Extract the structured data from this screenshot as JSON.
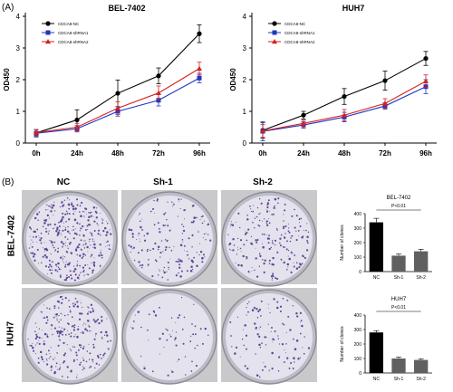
{
  "panels": {
    "a_label": "(A)",
    "b_label": "(B)"
  },
  "growth_x_label": "",
  "chart_data": [
    {
      "type": "line",
      "title": "BEL-7402",
      "ylabel": "OD450",
      "xlabel": "",
      "categories": [
        "0h",
        "24h",
        "48h",
        "72h",
        "96h"
      ],
      "ylim": [
        0,
        4
      ],
      "yticks": [
        "0",
        "1",
        "2",
        "3",
        "4"
      ],
      "series": [
        {
          "name": "CDCA8-NC",
          "color": "#000000",
          "marker": "circle",
          "values": [
            0.32,
            0.73,
            1.57,
            2.12,
            3.45
          ],
          "errors": [
            0.1,
            0.32,
            0.42,
            0.25,
            0.28
          ]
        },
        {
          "name": "CDCA8-shRNA1",
          "color": "#1f35c4",
          "marker": "square",
          "values": [
            0.31,
            0.45,
            1.0,
            1.35,
            2.05
          ],
          "errors": [
            0.12,
            0.1,
            0.15,
            0.18,
            0.15
          ]
        },
        {
          "name": "CDCA8-shRNA2",
          "color": "#d42020",
          "marker": "triangle",
          "values": [
            0.33,
            0.5,
            1.1,
            1.58,
            2.35
          ],
          "errors": [
            0.1,
            0.12,
            0.2,
            0.22,
            0.2
          ]
        }
      ],
      "legend_placement": "top-left"
    },
    {
      "type": "line",
      "title": "HUH7",
      "ylabel": "OD450",
      "xlabel": "",
      "categories": [
        "0h",
        "24h",
        "48h",
        "72h",
        "96h"
      ],
      "ylim": [
        0,
        4
      ],
      "yticks": [
        "0",
        "1",
        "2",
        "3",
        "4"
      ],
      "series": [
        {
          "name": "CDCA8-NC",
          "color": "#000000",
          "marker": "circle",
          "values": [
            0.4,
            0.88,
            1.47,
            1.97,
            2.67
          ],
          "errors": [
            0.25,
            0.12,
            0.25,
            0.3,
            0.22
          ]
        },
        {
          "name": "CDCA8-shRNA1",
          "color": "#1f35c4",
          "marker": "square",
          "values": [
            0.37,
            0.57,
            0.82,
            1.17,
            1.78
          ],
          "errors": [
            0.3,
            0.1,
            0.15,
            0.1,
            0.22
          ]
        },
        {
          "name": "CDCA8-shRNA2",
          "color": "#d42020",
          "marker": "triangle",
          "values": [
            0.38,
            0.62,
            0.88,
            1.25,
            1.95
          ],
          "errors": [
            0.2,
            0.1,
            0.18,
            0.15,
            0.2
          ]
        }
      ],
      "legend_placement": "top-left"
    },
    {
      "type": "bar",
      "title": "BEL-7402",
      "ylabel": "Number of clones",
      "categories": [
        "NC",
        "Sh-1",
        "Sh-2"
      ],
      "values": [
        340,
        110,
        140
      ],
      "errors": [
        28,
        12,
        14
      ],
      "colors": [
        "#000000",
        "#606060",
        "#606060"
      ],
      "ylim": [
        0,
        400
      ],
      "yticks": [
        "0",
        "100",
        "200",
        "300",
        "400"
      ],
      "annotation": "P<0.01"
    },
    {
      "type": "bar",
      "title": "HUH7",
      "ylabel": "Number of clones",
      "categories": [
        "NC",
        "Sh-1",
        "Sh-2"
      ],
      "values": [
        280,
        100,
        90
      ],
      "errors": [
        12,
        10,
        8
      ],
      "colors": [
        "#000000",
        "#606060",
        "#606060"
      ],
      "ylim": [
        0,
        400
      ],
      "yticks": [
        "0",
        "100",
        "200",
        "300",
        "400"
      ],
      "annotation": "P<0.01"
    }
  ],
  "colony": {
    "column_titles": [
      "NC",
      "Sh-1",
      "Sh-2"
    ],
    "row_labels": [
      "BEL-7402",
      "HUH7"
    ],
    "dish_color": "#4a2c8a",
    "densities": [
      [
        0.85,
        0.4,
        0.5
      ],
      [
        0.6,
        0.15,
        0.25
      ]
    ]
  }
}
